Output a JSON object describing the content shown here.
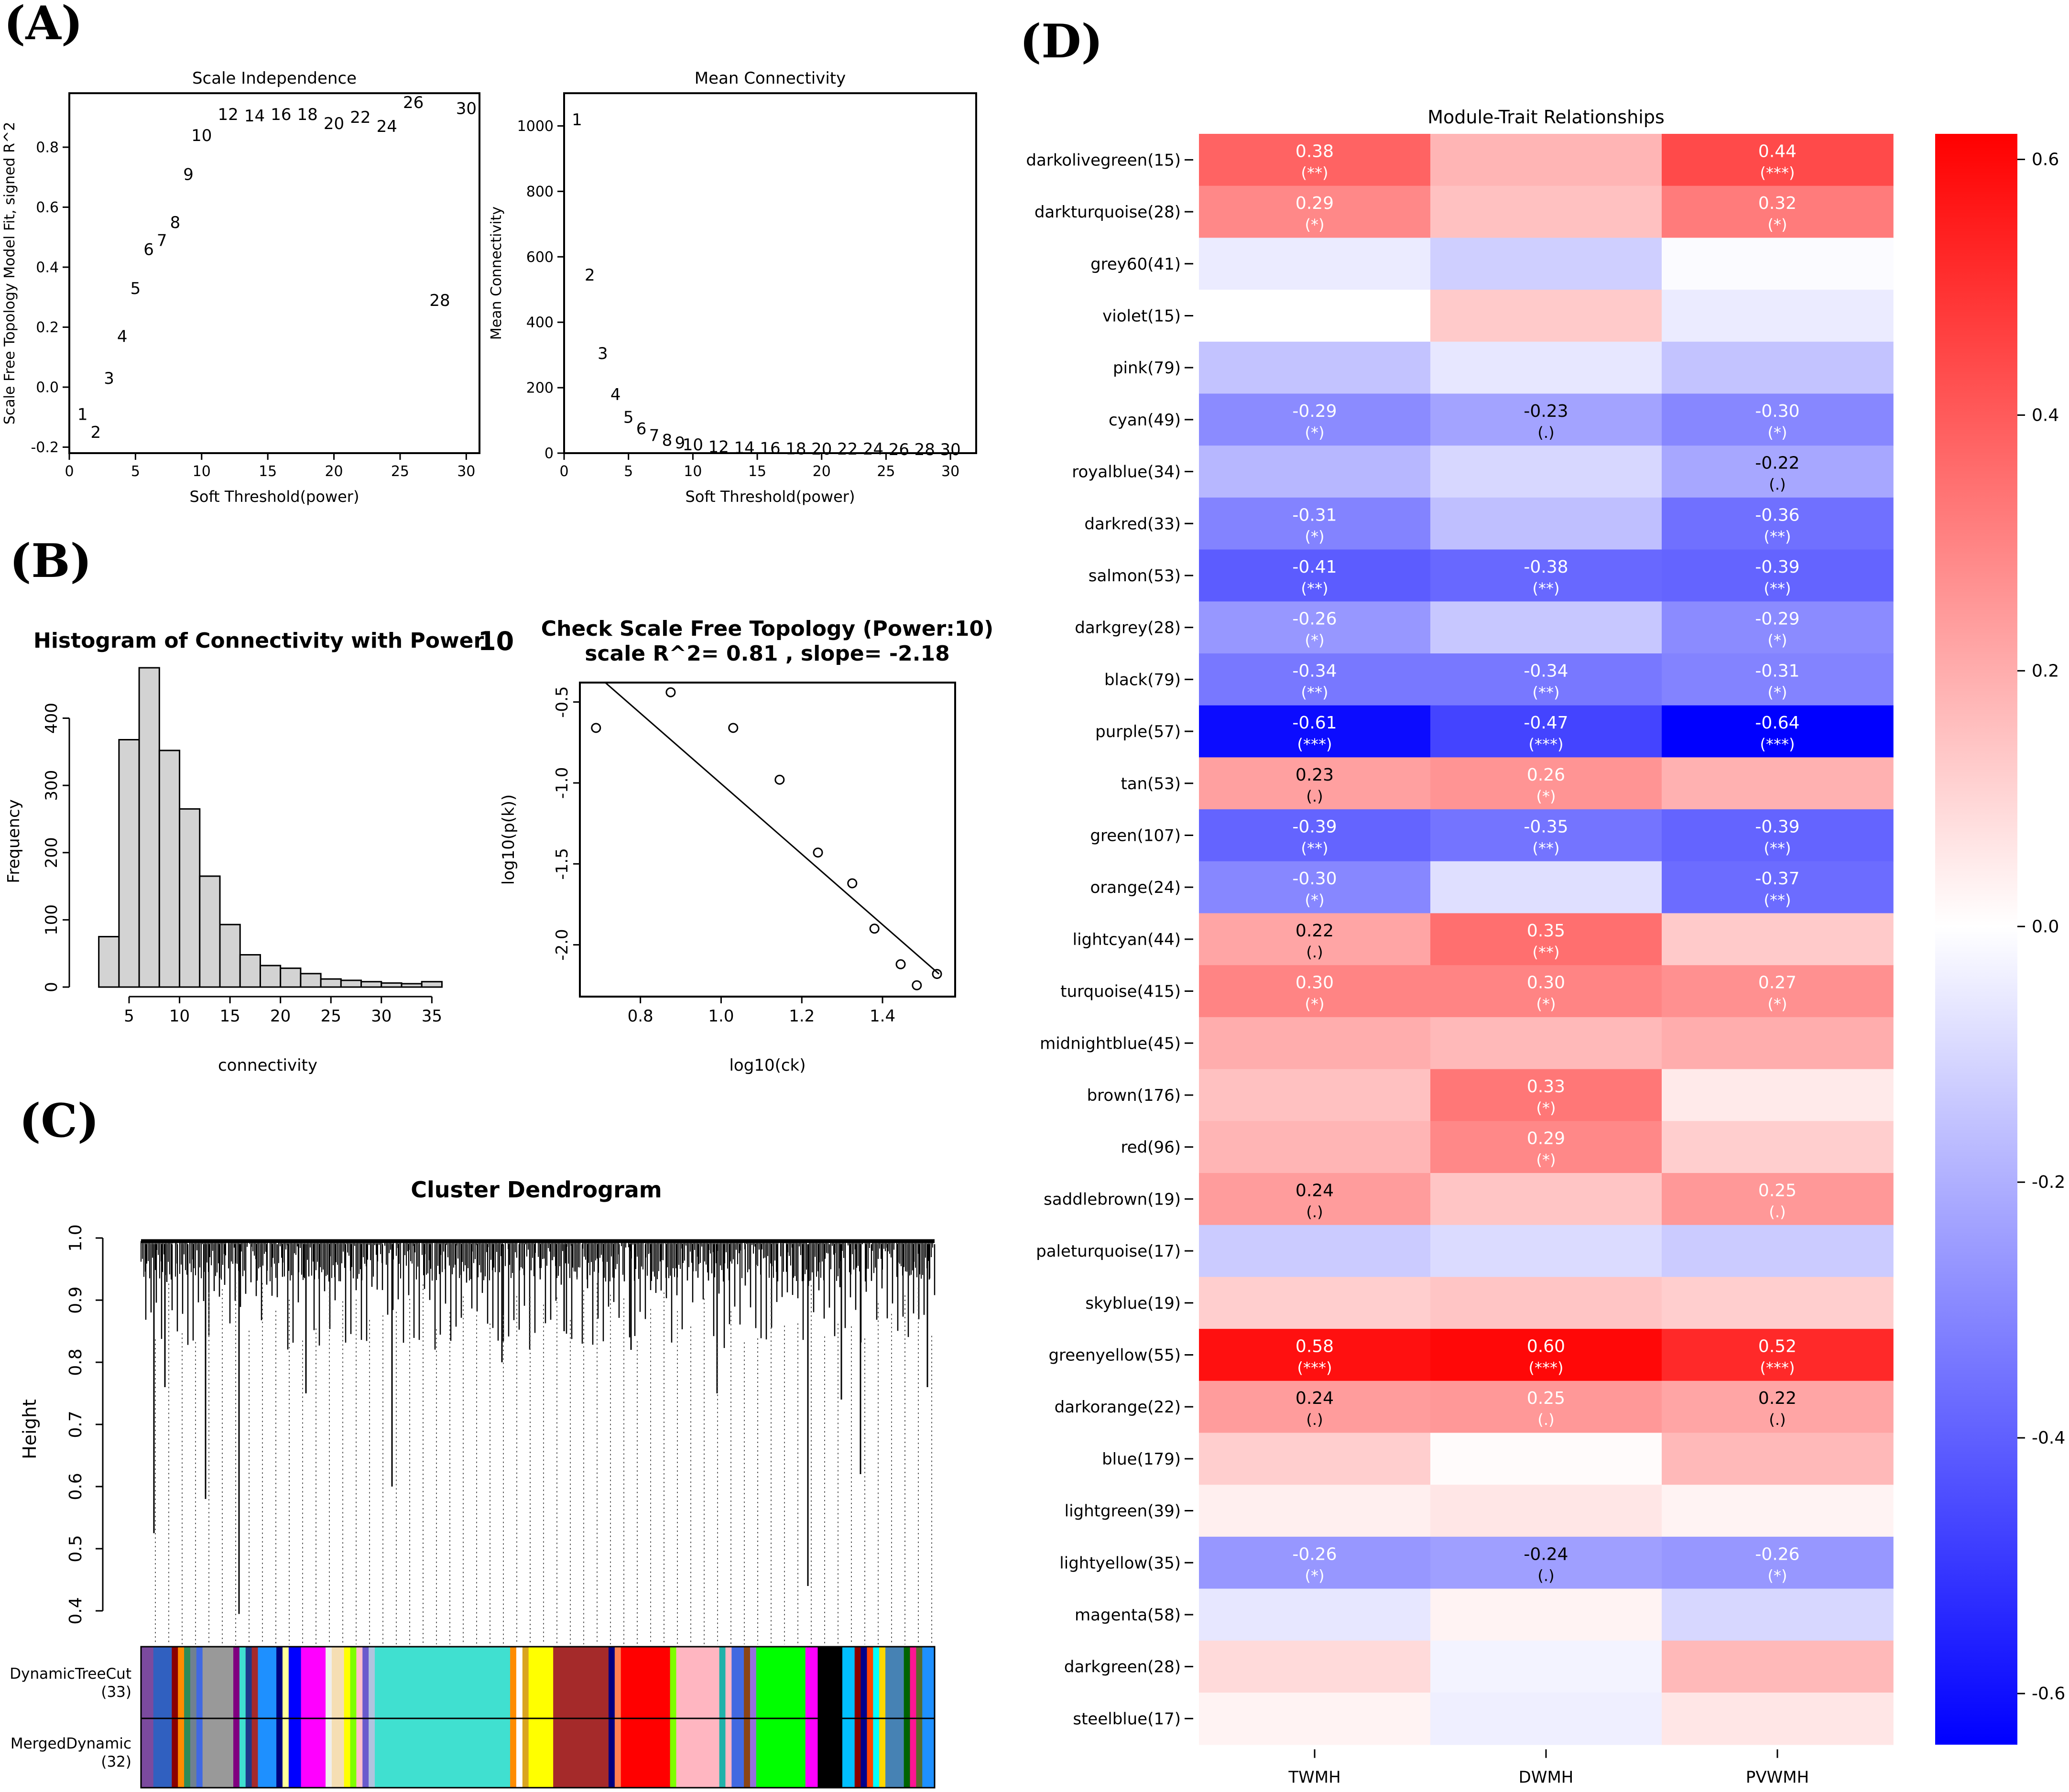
{
  "panels": {
    "A": "(A)",
    "B": "(B)",
    "C": "(C)",
    "D": "(D)"
  },
  "chart_data": [
    {
      "id": "scale_independence",
      "type": "scatter",
      "title": "Scale Independence",
      "xlabel": "Soft Threshold(power)",
      "ylabel": "Scale Free Topology Model Fit, signed R^2",
      "xlim": [
        0,
        31
      ],
      "ylim": [
        -0.22,
        0.98
      ],
      "xticks": [
        0,
        5,
        10,
        15,
        20,
        25,
        30
      ],
      "yticks": [
        -0.2,
        0.0,
        0.2,
        0.4,
        0.6,
        0.8
      ],
      "ytick_labels": [
        "-0.2",
        "0.0",
        "0.2",
        "0.4",
        "0.6",
        "0.8"
      ],
      "points": [
        {
          "x": 1,
          "y": -0.09,
          "label": "1"
        },
        {
          "x": 2,
          "y": -0.15,
          "label": "2"
        },
        {
          "x": 3,
          "y": 0.03,
          "label": "3"
        },
        {
          "x": 4,
          "y": 0.17,
          "label": "4"
        },
        {
          "x": 5,
          "y": 0.33,
          "label": "5"
        },
        {
          "x": 6,
          "y": 0.46,
          "label": "6"
        },
        {
          "x": 7,
          "y": 0.49,
          "label": "7"
        },
        {
          "x": 8,
          "y": 0.55,
          "label": "8"
        },
        {
          "x": 9,
          "y": 0.71,
          "label": "9"
        },
        {
          "x": 10,
          "y": 0.84,
          "label": "10"
        },
        {
          "x": 12,
          "y": 0.91,
          "label": "12"
        },
        {
          "x": 14,
          "y": 0.905,
          "label": "14"
        },
        {
          "x": 16,
          "y": 0.91,
          "label": "16"
        },
        {
          "x": 18,
          "y": 0.91,
          "label": "18"
        },
        {
          "x": 20,
          "y": 0.88,
          "label": "20"
        },
        {
          "x": 22,
          "y": 0.9,
          "label": "22"
        },
        {
          "x": 24,
          "y": 0.87,
          "label": "24"
        },
        {
          "x": 26,
          "y": 0.95,
          "label": "26"
        },
        {
          "x": 28,
          "y": 0.29,
          "label": "28"
        },
        {
          "x": 30,
          "y": 0.93,
          "label": "30"
        }
      ]
    },
    {
      "id": "mean_connectivity",
      "type": "scatter",
      "title": "Mean Connectivity",
      "xlabel": "Soft Threshold(power)",
      "ylabel": "Mean Connectivity",
      "xlim": [
        0,
        32
      ],
      "ylim": [
        0,
        1100
      ],
      "xticks": [
        0,
        5,
        10,
        15,
        20,
        25,
        30
      ],
      "yticks": [
        0,
        200,
        400,
        600,
        800,
        1000
      ],
      "ytick_labels": [
        "0",
        "200",
        "400",
        "600",
        "800",
        "1000"
      ],
      "points": [
        {
          "x": 1,
          "y": 1020,
          "label": "1"
        },
        {
          "x": 2,
          "y": 545,
          "label": "2"
        },
        {
          "x": 3,
          "y": 305,
          "label": "3"
        },
        {
          "x": 4,
          "y": 180,
          "label": "4"
        },
        {
          "x": 5,
          "y": 110,
          "label": "5"
        },
        {
          "x": 6,
          "y": 75,
          "label": "6"
        },
        {
          "x": 7,
          "y": 55,
          "label": "7"
        },
        {
          "x": 8,
          "y": 40,
          "label": "8"
        },
        {
          "x": 9,
          "y": 32,
          "label": "9"
        },
        {
          "x": 10,
          "y": 26,
          "label": "10"
        },
        {
          "x": 12,
          "y": 20,
          "label": "12"
        },
        {
          "x": 14,
          "y": 17,
          "label": "14"
        },
        {
          "x": 16,
          "y": 15,
          "label": "16"
        },
        {
          "x": 18,
          "y": 14,
          "label": "18"
        },
        {
          "x": 20,
          "y": 13,
          "label": "20"
        },
        {
          "x": 22,
          "y": 13,
          "label": "22"
        },
        {
          "x": 24,
          "y": 13,
          "label": "24"
        },
        {
          "x": 26,
          "y": 12,
          "label": "26"
        },
        {
          "x": 28,
          "y": 12,
          "label": "28"
        },
        {
          "x": 30,
          "y": 12,
          "label": "30"
        }
      ]
    },
    {
      "id": "connectivity_histogram",
      "type": "bar",
      "title": "Histogram of Connectivity with Power:",
      "title_value": "10",
      "xlabel": "connectivity",
      "ylabel": "Frequency",
      "xlim": [
        0.5,
        36.5
      ],
      "ylim": [
        0,
        480
      ],
      "xticks": [
        5,
        10,
        15,
        20,
        25,
        30,
        35
      ],
      "yticks": [
        0,
        100,
        200,
        300,
        400
      ],
      "ytick_labels": [
        "0",
        "100",
        "200",
        "300",
        "400"
      ],
      "bin_edges": [
        2,
        4,
        6,
        8,
        10,
        12,
        14,
        16,
        18,
        20,
        22,
        24,
        26,
        28,
        30,
        32,
        34,
        36
      ],
      "values": [
        75,
        368,
        475,
        352,
        265,
        165,
        93,
        48,
        32,
        28,
        20,
        12,
        10,
        8,
        6,
        5,
        8
      ]
    },
    {
      "id": "scale_free_check",
      "type": "scatter",
      "title": "Check Scale Free Topology (Power:10)",
      "subtitle": "scale R^2= 0.81 , slope= -2.18",
      "xlabel": "log10(ck)",
      "ylabel": "log10(p(k))",
      "xlim": [
        0.65,
        1.58
      ],
      "ylim": [
        -2.32,
        -0.38
      ],
      "xticks": [
        0.8,
        1.0,
        1.2,
        1.4
      ],
      "xtick_labels": [
        "0.8",
        "1.0",
        "1.2",
        "1.4"
      ],
      "yticks": [
        -2.0,
        -1.5,
        -1.0,
        -0.5
      ],
      "ytick_labels": [
        "-2.0",
        "-1.5",
        "-1.0",
        "-0.5"
      ],
      "points_x": [
        0.69,
        0.875,
        1.03,
        1.145,
        1.24,
        1.325,
        1.38,
        1.445,
        1.485,
        1.535
      ],
      "points_y": [
        -0.66,
        -0.44,
        -0.66,
        -0.98,
        -1.43,
        -1.62,
        -1.9,
        -2.12,
        -2.25,
        -2.18
      ],
      "fit_line": {
        "x": [
          0.69,
          1.54
        ],
        "y": [
          -0.33,
          -2.18
        ]
      }
    },
    {
      "id": "cluster_dendrogram",
      "type": "dendrogram",
      "title": "Cluster Dendrogram",
      "ylabel": "Height",
      "ylim": [
        0.37,
        1.0
      ],
      "yticks": [
        0.4,
        0.5,
        0.6,
        0.7,
        0.8,
        0.9,
        1.0
      ],
      "ytick_labels": [
        "0.4",
        "0.5",
        "0.6",
        "0.7",
        "0.8",
        "0.9",
        "1.0"
      ],
      "row_labels": [
        {
          "name": "DynamicTreeCut",
          "count": "(33)"
        },
        {
          "name": "MergedDynamic",
          "count": "(32)"
        }
      ],
      "color_bands": [
        {
          "color": "#7b4a9e",
          "w": 2
        },
        {
          "color": "#3060c0",
          "w": 3
        },
        {
          "color": "#8b0000",
          "w": 1
        },
        {
          "color": "#ff8c00",
          "w": 1
        },
        {
          "color": "#2e8b57",
          "w": 1
        },
        {
          "color": "#708090",
          "w": 1
        },
        {
          "color": "#4169e1",
          "w": 1
        },
        {
          "color": "#999999",
          "w": 5
        },
        {
          "color": "#800080",
          "w": 1
        },
        {
          "color": "#40e0d0",
          "w": 1
        },
        {
          "color": "#1e3a8a",
          "w": 1
        },
        {
          "color": "#a52a2a",
          "w": 1
        },
        {
          "color": "#1e90ff",
          "w": 3
        },
        {
          "color": "#000080",
          "w": 1
        },
        {
          "color": "#ffff99",
          "w": 1
        },
        {
          "color": "#0000ff",
          "w": 2
        },
        {
          "color": "#ff00ff",
          "w": 4
        },
        {
          "color": "#eeeeee",
          "w": 1
        },
        {
          "color": "#f5deb3",
          "w": 2
        },
        {
          "color": "#ffff00",
          "w": 1
        },
        {
          "color": "#7fff00",
          "w": 1
        },
        {
          "color": "#ffc0cb",
          "w": 1
        },
        {
          "color": "#6a5acd",
          "w": 1
        },
        {
          "color": "#b0c4de",
          "w": 1
        },
        {
          "color": "#40e0d0",
          "w": 22
        },
        {
          "color": "#ff8c00",
          "w": 1
        },
        {
          "color": "#ffffff",
          "w": 1
        },
        {
          "color": "#daa520",
          "w": 1
        },
        {
          "color": "#ffff00",
          "w": 4
        },
        {
          "color": "#a52a2a",
          "w": 9
        },
        {
          "color": "#000080",
          "w": 1
        },
        {
          "color": "#ff7f50",
          "w": 1
        },
        {
          "color": "#ff0000",
          "w": 8
        },
        {
          "color": "#7fff00",
          "w": 1
        },
        {
          "color": "#ffb6c1",
          "w": 7
        },
        {
          "color": "#20b2aa",
          "w": 1
        },
        {
          "color": "#ffb6c1",
          "w": 1
        },
        {
          "color": "#4169e1",
          "w": 2
        },
        {
          "color": "#8b4513",
          "w": 1
        },
        {
          "color": "#9370db",
          "w": 1
        },
        {
          "color": "#00ff00",
          "w": 8
        },
        {
          "color": "#ff00ff",
          "w": 2
        },
        {
          "color": "#000000",
          "w": 4
        },
        {
          "color": "#00bfff",
          "w": 2
        },
        {
          "color": "#8b0000",
          "w": 1
        },
        {
          "color": "#00008b",
          "w": 1
        },
        {
          "color": "#ff4500",
          "w": 1
        },
        {
          "color": "#00ffff",
          "w": 1
        },
        {
          "color": "#ffd700",
          "w": 1
        },
        {
          "color": "#4682b4",
          "w": 3
        },
        {
          "color": "#006400",
          "w": 1
        },
        {
          "color": "#ff1493",
          "w": 1
        },
        {
          "color": "#556b2f",
          "w": 1
        },
        {
          "color": "#1e90ff",
          "w": 2
        }
      ]
    },
    {
      "id": "module_trait_heatmap",
      "type": "heatmap",
      "title": "Module-Trait Relationships",
      "columns": [
        "TWMH",
        "DWMH",
        "PVWMH"
      ],
      "rows": [
        "darkolivegreen(15)",
        "darkturquoise(28)",
        "grey60(41)",
        "violet(15)",
        "pink(79)",
        "cyan(49)",
        "royalblue(34)",
        "darkred(33)",
        "salmon(53)",
        "darkgrey(28)",
        "black(79)",
        "purple(57)",
        "tan(53)",
        "green(107)",
        "orange(24)",
        "lightcyan(44)",
        "turquoise(415)",
        "midnightblue(45)",
        "brown(176)",
        "red(96)",
        "saddlebrown(19)",
        "paleturquoise(17)",
        "skyblue(19)",
        "greenyellow(55)",
        "darkorange(22)",
        "blue(179)",
        "lightgreen(39)",
        "lightyellow(35)",
        "magenta(58)",
        "darkgreen(28)",
        "steelblue(17)"
      ],
      "values": [
        [
          0.38,
          0.18,
          0.44
        ],
        [
          0.29,
          0.15,
          0.32
        ],
        [
          -0.05,
          -0.12,
          -0.01
        ],
        [
          0.0,
          0.13,
          -0.05
        ],
        [
          -0.15,
          -0.06,
          -0.15
        ],
        [
          -0.29,
          -0.23,
          -0.3
        ],
        [
          -0.18,
          -0.1,
          -0.22
        ],
        [
          -0.31,
          -0.16,
          -0.36
        ],
        [
          -0.41,
          -0.38,
          -0.39
        ],
        [
          -0.26,
          -0.14,
          -0.29
        ],
        [
          -0.34,
          -0.34,
          -0.31
        ],
        [
          -0.61,
          -0.47,
          -0.64
        ],
        [
          0.23,
          0.26,
          0.19
        ],
        [
          -0.39,
          -0.35,
          -0.39
        ],
        [
          -0.3,
          -0.08,
          -0.37
        ],
        [
          0.22,
          0.35,
          0.13
        ],
        [
          0.3,
          0.3,
          0.27
        ],
        [
          0.2,
          0.17,
          0.2
        ],
        [
          0.15,
          0.33,
          0.05
        ],
        [
          0.18,
          0.29,
          0.12
        ],
        [
          0.24,
          0.14,
          0.25
        ],
        [
          -0.13,
          -0.09,
          -0.13
        ],
        [
          0.12,
          0.14,
          0.12
        ],
        [
          0.58,
          0.6,
          0.52
        ],
        [
          0.24,
          0.25,
          0.22
        ],
        [
          0.12,
          0.01,
          0.17
        ],
        [
          0.04,
          0.06,
          0.03
        ],
        [
          -0.26,
          -0.24,
          -0.26
        ],
        [
          -0.06,
          0.03,
          -0.1
        ],
        [
          0.09,
          -0.03,
          0.17
        ],
        [
          0.03,
          -0.04,
          0.06
        ]
      ],
      "annotations": [
        [
          {
            "v": "0.38",
            "p": "(**)"
          },
          null,
          {
            "v": "0.44",
            "p": "(***)"
          }
        ],
        [
          {
            "v": "0.29",
            "p": "(*)"
          },
          null,
          {
            "v": "0.32",
            "p": "(*)"
          }
        ],
        [
          null,
          null,
          null
        ],
        [
          null,
          null,
          null
        ],
        [
          null,
          null,
          null
        ],
        [
          {
            "v": "-0.29",
            "p": "(*)"
          },
          {
            "v": "-0.23",
            "p": "(.)"
          },
          {
            "v": "-0.30",
            "p": "(*)"
          }
        ],
        [
          null,
          null,
          {
            "v": "-0.22",
            "p": "(.)"
          }
        ],
        [
          {
            "v": "-0.31",
            "p": "(*)"
          },
          null,
          {
            "v": "-0.36",
            "p": "(**)"
          }
        ],
        [
          {
            "v": "-0.41",
            "p": "(**)"
          },
          {
            "v": "-0.38",
            "p": "(**)"
          },
          {
            "v": "-0.39",
            "p": "(**)"
          }
        ],
        [
          {
            "v": "-0.26",
            "p": "(*)"
          },
          null,
          {
            "v": "-0.29",
            "p": "(*)"
          }
        ],
        [
          {
            "v": "-0.34",
            "p": "(**)"
          },
          {
            "v": "-0.34",
            "p": "(**)"
          },
          {
            "v": "-0.31",
            "p": "(*)"
          }
        ],
        [
          {
            "v": "-0.61",
            "p": "(***)"
          },
          {
            "v": "-0.47",
            "p": "(***)"
          },
          {
            "v": "-0.64",
            "p": "(***)"
          }
        ],
        [
          {
            "v": "0.23",
            "p": "(.)"
          },
          {
            "v": "0.26",
            "p": "(*)"
          },
          null
        ],
        [
          {
            "v": "-0.39",
            "p": "(**)"
          },
          {
            "v": "-0.35",
            "p": "(**)"
          },
          {
            "v": "-0.39",
            "p": "(**)"
          }
        ],
        [
          {
            "v": "-0.30",
            "p": "(*)"
          },
          null,
          {
            "v": "-0.37",
            "p": "(**)"
          }
        ],
        [
          {
            "v": "0.22",
            "p": "(.)"
          },
          {
            "v": "0.35",
            "p": "(**)"
          },
          null
        ],
        [
          {
            "v": "0.30",
            "p": "(*)"
          },
          {
            "v": "0.30",
            "p": "(*)"
          },
          {
            "v": "0.27",
            "p": "(*)"
          }
        ],
        [
          null,
          null,
          null
        ],
        [
          null,
          {
            "v": "0.33",
            "p": "(*)"
          },
          null
        ],
        [
          null,
          {
            "v": "0.29",
            "p": "(*)"
          },
          null
        ],
        [
          {
            "v": "0.24",
            "p": "(.)"
          },
          null,
          {
            "v": "0.25",
            "p": "(.)"
          }
        ],
        [
          null,
          null,
          null
        ],
        [
          null,
          null,
          null
        ],
        [
          {
            "v": "0.58",
            "p": "(***)"
          },
          {
            "v": "0.60",
            "p": "(***)"
          },
          {
            "v": "0.52",
            "p": "(***)"
          }
        ],
        [
          {
            "v": "0.24",
            "p": "(.)"
          },
          {
            "v": "0.25",
            "p": "(.)"
          },
          {
            "v": "0.22",
            "p": "(.)"
          }
        ],
        [
          null,
          null,
          null
        ],
        [
          null,
          null,
          null
        ],
        [
          {
            "v": "-0.26",
            "p": "(*)"
          },
          {
            "v": "-0.24",
            "p": "(.)"
          },
          {
            "v": "-0.26",
            "p": "(*)"
          }
        ],
        [
          null,
          null,
          null
        ],
        [
          null,
          null,
          null
        ],
        [
          null,
          null,
          null
        ]
      ],
      "colorbar": {
        "min": -0.64,
        "max": 0.62,
        "ticks": [
          0.6,
          0.4,
          0.2,
          0.0,
          -0.2,
          -0.4,
          -0.6
        ],
        "tick_labels": [
          "0.6",
          "0.4",
          "0.2",
          "0.0",
          "-0.2",
          "-0.4",
          "-0.6"
        ],
        "colors": [
          "#0000ff",
          "#ffffff",
          "#ff0000"
        ]
      }
    }
  ]
}
